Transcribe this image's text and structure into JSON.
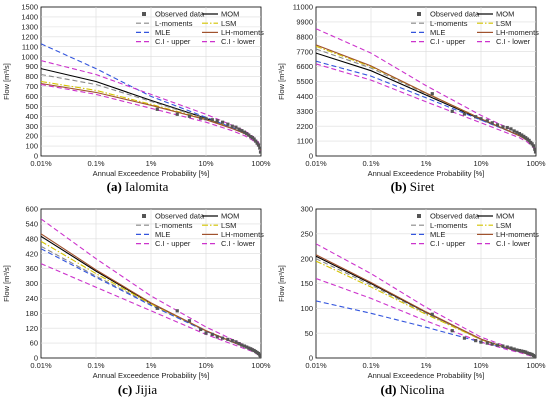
{
  "figure": {
    "legend_entries": [
      "Observed data",
      "MOM",
      "L-moments",
      "LSM",
      "MLE",
      "LH-moments",
      "C.I - upper",
      "C.I - lower"
    ],
    "legend_styles": {
      "Observed data": {
        "color": "#555555",
        "kind": "square"
      },
      "MOM": {
        "color": "#000000",
        "kind": "solid"
      },
      "L-moments": {
        "color": "#888888",
        "kind": "dashed"
      },
      "LSM": {
        "color": "#d4c400",
        "kind": "dashdot"
      },
      "MLE": {
        "color": "#3355dd",
        "kind": "dashed"
      },
      "LH-moments": {
        "color": "#a0522d",
        "kind": "solid"
      },
      "C.I - upper": {
        "color": "#cc33cc",
        "kind": "dashed"
      },
      "C.I - lower": {
        "color": "#cc33cc",
        "kind": "dashed"
      }
    }
  },
  "chart_data": [
    {
      "type": "line",
      "panel_id": "a",
      "caption_letter": "(a)",
      "caption_name": "Ialomita",
      "xlabel": "Annual Exceedence Probability [%]",
      "ylabel": "Flow [m³/s]",
      "x_scale": "log-probability",
      "x_ticks": [
        "0.01%",
        "0.1%",
        "1%",
        "10%",
        "100%"
      ],
      "y_ticks": [
        0,
        100,
        200,
        300,
        400,
        500,
        600,
        700,
        800,
        900,
        1000,
        1100,
        1200,
        1300,
        1400,
        1500
      ],
      "ylim": [
        0,
        1500
      ],
      "grid": true,
      "legend_position": "top-right",
      "x": [
        0.01,
        0.1,
        1,
        10,
        30,
        50,
        70,
        90,
        99
      ],
      "series": [
        {
          "name": "MOM",
          "values": [
            880,
            750,
            560,
            380,
            280,
            230,
            180,
            120,
            60
          ]
        },
        {
          "name": "L-moments",
          "values": [
            820,
            720,
            550,
            375,
            280,
            230,
            180,
            120,
            60
          ]
        },
        {
          "name": "LSM",
          "values": [
            750,
            660,
            520,
            370,
            278,
            228,
            178,
            118,
            60
          ]
        },
        {
          "name": "MLE",
          "values": [
            1130,
            880,
            600,
            390,
            285,
            232,
            180,
            118,
            55
          ]
        },
        {
          "name": "LH-moments",
          "values": [
            730,
            640,
            510,
            365,
            276,
            228,
            178,
            118,
            60
          ]
        },
        {
          "name": "C.I - upper",
          "values": [
            960,
            820,
            620,
            420,
            310,
            255,
            200,
            140,
            75
          ]
        },
        {
          "name": "C.I - lower",
          "values": [
            720,
            620,
            480,
            340,
            255,
            205,
            160,
            100,
            40
          ]
        }
      ],
      "observed": {
        "x": [
          1.3,
          3,
          5,
          8,
          10,
          13,
          16,
          20,
          25,
          30,
          35,
          40,
          45,
          50,
          55,
          60,
          65,
          70,
          75,
          80,
          85,
          90,
          95,
          98
        ],
        "y": [
          470,
          420,
          400,
          380,
          375,
          365,
          355,
          340,
          320,
          300,
          290,
          270,
          255,
          240,
          225,
          210,
          195,
          185,
          170,
          150,
          130,
          110,
          80,
          40
        ]
      }
    },
    {
      "type": "line",
      "panel_id": "b",
      "caption_letter": "(b)",
      "caption_name": "Siret",
      "xlabel": "Annual Exceedence Probability [%]",
      "ylabel": "Flow [m³/s]",
      "x_scale": "log-probability",
      "x_ticks": [
        "0.01%",
        "0.1%",
        "1%",
        "10%",
        "100%"
      ],
      "y_ticks": [
        0,
        1100,
        2200,
        3300,
        4400,
        5500,
        6600,
        7700,
        8800,
        9900,
        11000
      ],
      "ylim": [
        0,
        11000
      ],
      "grid": true,
      "legend_position": "top-right",
      "x": [
        0.01,
        0.1,
        1,
        10,
        30,
        50,
        70,
        90,
        99
      ],
      "series": [
        {
          "name": "MOM",
          "values": [
            7600,
            6300,
            4500,
            2700,
            1900,
            1500,
            1150,
            700,
            300
          ]
        },
        {
          "name": "L-moments",
          "values": [
            7900,
            6500,
            4600,
            2750,
            1900,
            1500,
            1150,
            700,
            300
          ]
        },
        {
          "name": "LSM",
          "values": [
            8100,
            6600,
            4650,
            2750,
            1900,
            1500,
            1150,
            700,
            300
          ]
        },
        {
          "name": "MLE",
          "values": [
            7000,
            5900,
            4300,
            2650,
            1880,
            1500,
            1150,
            700,
            300
          ]
        },
        {
          "name": "LH-moments",
          "values": [
            8200,
            6650,
            4650,
            2750,
            1900,
            1500,
            1150,
            700,
            300
          ]
        },
        {
          "name": "C.I - upper",
          "values": [
            9400,
            7600,
            5200,
            3000,
            2100,
            1650,
            1300,
            820,
            380
          ]
        },
        {
          "name": "C.I - lower",
          "values": [
            6800,
            5600,
            4000,
            2450,
            1700,
            1350,
            1020,
            600,
            220
          ]
        }
      ],
      "observed": {
        "x": [
          1.3,
          3,
          5,
          8,
          10,
          13,
          16,
          20,
          25,
          30,
          35,
          40,
          45,
          50,
          55,
          60,
          65,
          70,
          75,
          80,
          85,
          90,
          95,
          98
        ],
        "y": [
          4600,
          3300,
          3100,
          2900,
          2750,
          2600,
          2450,
          2300,
          2150,
          2100,
          2000,
          1850,
          1750,
          1650,
          1550,
          1450,
          1350,
          1250,
          1150,
          1000,
          900,
          750,
          500,
          300
        ]
      }
    },
    {
      "type": "line",
      "panel_id": "c",
      "caption_letter": "(c)",
      "caption_name": "Jijia",
      "xlabel": "Annual Exceedence Probability [%]",
      "ylabel": "Flow [m³/s]",
      "x_scale": "log-probability",
      "x_ticks": [
        "0.01%",
        "0.1%",
        "1%",
        "10%",
        "100%"
      ],
      "y_ticks": [
        0,
        60,
        120,
        180,
        240,
        300,
        360,
        420,
        480,
        540,
        600
      ],
      "ylim": [
        0,
        600
      ],
      "grid": true,
      "legend_position": "top-right",
      "x": [
        0.01,
        0.1,
        1,
        10,
        30,
        50,
        70,
        90,
        99
      ],
      "series": [
        {
          "name": "MOM",
          "values": [
            490,
            350,
            220,
            110,
            65,
            45,
            32,
            18,
            5
          ]
        },
        {
          "name": "L-moments",
          "values": [
            450,
            330,
            215,
            108,
            65,
            45,
            32,
            18,
            5
          ]
        },
        {
          "name": "LSM",
          "values": [
            470,
            340,
            218,
            110,
            65,
            45,
            32,
            18,
            5
          ]
        },
        {
          "name": "MLE",
          "values": [
            440,
            325,
            212,
            108,
            65,
            45,
            32,
            18,
            5
          ]
        },
        {
          "name": "LH-moments",
          "values": [
            500,
            355,
            222,
            110,
            65,
            45,
            32,
            18,
            5
          ]
        },
        {
          "name": "C.I - upper",
          "values": [
            560,
            400,
            250,
            125,
            75,
            52,
            38,
            22,
            8
          ]
        },
        {
          "name": "C.I - lower",
          "values": [
            380,
            285,
            190,
            95,
            56,
            38,
            26,
            13,
            2
          ]
        }
      ],
      "observed": {
        "x": [
          1.3,
          3,
          5,
          8,
          10,
          13,
          16,
          20,
          25,
          30,
          35,
          40,
          45,
          50,
          55,
          60,
          65,
          70,
          75,
          80,
          85,
          90,
          95,
          98
        ],
        "y": [
          200,
          190,
          150,
          115,
          100,
          95,
          85,
          80,
          75,
          70,
          65,
          58,
          52,
          48,
          44,
          40,
          37,
          33,
          30,
          26,
          22,
          18,
          12,
          6
        ]
      }
    },
    {
      "type": "line",
      "panel_id": "d",
      "caption_letter": "(d)",
      "caption_name": "Nicolina",
      "xlabel": "Annual Exceedence Probability [%]",
      "ylabel": "Flow [m³/s]",
      "x_scale": "log-probability",
      "x_ticks": [
        "0.01%",
        "0.1%",
        "1%",
        "10%",
        "100%"
      ],
      "y_ticks": [
        0,
        50,
        100,
        150,
        200,
        250,
        300
      ],
      "ylim": [
        0,
        300
      ],
      "grid": true,
      "legend_position": "top-right",
      "x": [
        0.01,
        0.1,
        1,
        10,
        30,
        50,
        70,
        90,
        99
      ],
      "series": [
        {
          "name": "MOM",
          "values": [
            205,
            150,
            92,
            38,
            20,
            13,
            8,
            4,
            1
          ]
        },
        {
          "name": "L-moments",
          "values": [
            200,
            147,
            90,
            37,
            20,
            13,
            8,
            4,
            1
          ]
        },
        {
          "name": "LSM",
          "values": [
            195,
            143,
            88,
            37,
            20,
            13,
            8,
            4,
            1
          ]
        },
        {
          "name": "MLE",
          "values": [
            115,
            90,
            62,
            32,
            19,
            13,
            8,
            4,
            1
          ]
        },
        {
          "name": "LH-moments",
          "values": [
            208,
            152,
            93,
            38,
            20,
            13,
            8,
            4,
            1
          ]
        },
        {
          "name": "C.I - upper",
          "values": [
            230,
            170,
            102,
            42,
            23,
            15,
            10,
            5,
            2
          ]
        },
        {
          "name": "C.I - lower",
          "values": [
            160,
            120,
            75,
            32,
            17,
            11,
            6,
            3,
            0
          ]
        }
      ],
      "observed": {
        "x": [
          1.3,
          3,
          5,
          8,
          10,
          13,
          16,
          20,
          25,
          30,
          35,
          40,
          45,
          50,
          55,
          60,
          65,
          70,
          75,
          80,
          85,
          90,
          95,
          98
        ],
        "y": [
          88,
          55,
          40,
          35,
          32,
          30,
          28,
          26,
          24,
          22,
          20,
          18,
          16,
          15,
          14,
          13,
          12,
          10,
          9,
          8,
          7,
          5,
          3,
          1
        ]
      }
    }
  ]
}
